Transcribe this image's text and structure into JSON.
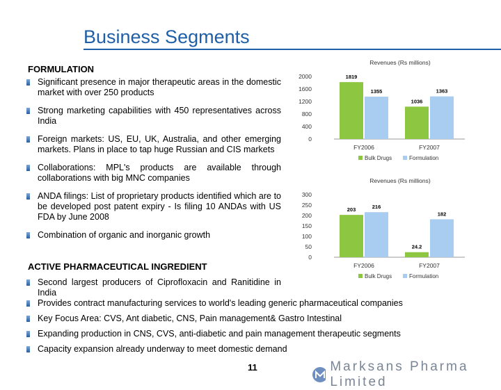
{
  "slide": {
    "title": "Business Segments",
    "page_number": "11",
    "logo_text": "Marksans Pharma Limited"
  },
  "formulation": {
    "heading": "FORMULATION",
    "bullets": [
      "Significant presence in major therapeutic areas in the domestic market with over 250 products",
      "Strong marketing capabilities with 450 representatives across India",
      "Foreign markets: US, EU, UK, Australia, and other emerging markets. Plans in place to tap huge Russian and CIS markets",
      "Collaborations: MPL's products are available through collaborations with big MNC companies",
      "ANDA filings: List of proprietary products identified which are to be developed post patent expiry - Is filing 10 ANDAs with US FDA by June 2008",
      "Combination of organic and inorganic growth"
    ]
  },
  "api": {
    "heading": "ACTIVE PHARMACEUTICAL INGREDIENT",
    "bullets": [
      "Second largest producers of Ciprofloxacin and Ranitidine in India",
      "Provides contract manufacturing services to world's leading generic pharmaceutical companies",
      "Key Focus Area: CVS, Ant diabetic, CNS, Pain management& Gastro Intestinal",
      "Expanding production in CNS, CVS, anti-diabetic and pain management therapeutic segments",
      "Capacity expansion already underway to meet domestic demand"
    ]
  },
  "colors": {
    "title": "#1f5fa8",
    "bulk_drugs": "#8dc641",
    "formulation": "#a9cdf0"
  },
  "chart_data": [
    {
      "type": "bar",
      "title": "Revenues (Rs millions)",
      "categories": [
        "FY2006",
        "FY2007"
      ],
      "series": [
        {
          "name": "Bulk Drugs",
          "values": [
            1819,
            1036
          ],
          "labels": [
            "1819",
            "1036"
          ]
        },
        {
          "name": "Formulation",
          "values": [
            1355,
            1363
          ],
          "labels": [
            "1355",
            "1363"
          ]
        }
      ],
      "yticks": [
        "2000",
        "1600",
        "1200",
        "800",
        "400",
        "0"
      ],
      "ylim": [
        0,
        2000
      ],
      "legend": "bottom"
    },
    {
      "type": "bar",
      "title": "Revenues (Rs millions)",
      "categories": [
        "FY2006",
        "FY2007"
      ],
      "series": [
        {
          "name": "Bulk Drugs",
          "values": [
            203,
            24.2
          ],
          "labels": [
            "203",
            "24.2"
          ]
        },
        {
          "name": "Formulation",
          "values": [
            216,
            182
          ],
          "labels": [
            "216",
            "182"
          ]
        }
      ],
      "yticks": [
        "300",
        "250",
        "200",
        "150",
        "100",
        "50",
        "0"
      ],
      "ylim": [
        0,
        300
      ],
      "legend": "bottom"
    }
  ]
}
